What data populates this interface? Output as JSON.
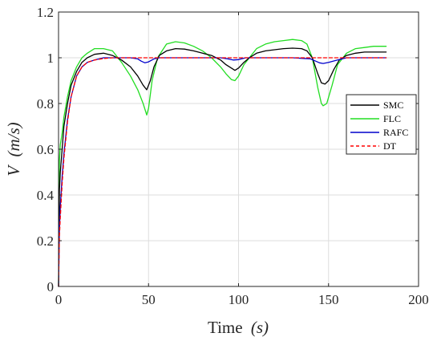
{
  "chart_data": {
    "type": "line",
    "xlabel_main": "Time",
    "xlabel_unit": "(s)",
    "ylabel_main": "V",
    "ylabel_unit": "(m/s)",
    "xlim": [
      0,
      200
    ],
    "ylim": [
      0,
      1.2
    ],
    "xticks": [
      0,
      50,
      100,
      150,
      200
    ],
    "yticks": [
      0,
      0.2,
      0.4,
      0.6,
      0.8,
      1,
      1.2
    ],
    "xtick_labels": [
      "0",
      "50",
      "100",
      "150",
      "200"
    ],
    "ytick_labels": [
      "0",
      "0.2",
      "0.4",
      "0.6",
      "0.8",
      "1",
      "1.2"
    ],
    "grid": true,
    "legend_position": "right",
    "series": [
      {
        "name": "SMC",
        "color": "#000000",
        "dash": "solid",
        "x": [
          0,
          0.5,
          1,
          2,
          3,
          5,
          7,
          10,
          13,
          16,
          20,
          25,
          30,
          35,
          40,
          44,
          47,
          49,
          51,
          53,
          56,
          60,
          65,
          70,
          75,
          80,
          85,
          90,
          93,
          96,
          98,
          100,
          103,
          106,
          110,
          115,
          120,
          125,
          130,
          135,
          138,
          141,
          144,
          146,
          148,
          150,
          153,
          156,
          160,
          165,
          170,
          175,
          182
        ],
        "y": [
          0,
          0.42,
          0.5,
          0.6,
          0.7,
          0.8,
          0.88,
          0.94,
          0.98,
          1.0,
          1.015,
          1.02,
          1.01,
          0.99,
          0.96,
          0.92,
          0.88,
          0.86,
          0.9,
          0.96,
          1.01,
          1.03,
          1.04,
          1.038,
          1.03,
          1.02,
          1.01,
          0.99,
          0.97,
          0.955,
          0.945,
          0.955,
          0.98,
          1.0,
          1.02,
          1.03,
          1.035,
          1.04,
          1.042,
          1.04,
          1.03,
          1.0,
          0.93,
          0.89,
          0.885,
          0.9,
          0.95,
          0.99,
          1.01,
          1.02,
          1.025,
          1.025,
          1.025
        ]
      },
      {
        "name": "FLC",
        "color": "#22dd22",
        "dash": "solid",
        "x": [
          0,
          0.5,
          1,
          2,
          3,
          5,
          7,
          10,
          13,
          16,
          20,
          25,
          30,
          35,
          40,
          44,
          47,
          49,
          50,
          52,
          55,
          60,
          65,
          70,
          75,
          80,
          85,
          90,
          93,
          96,
          98,
          100,
          103,
          106,
          110,
          115,
          120,
          125,
          130,
          135,
          138,
          141,
          144,
          146,
          147,
          149,
          152,
          155,
          160,
          165,
          170,
          175,
          182
        ],
        "y": [
          0,
          0.55,
          0.62,
          0.67,
          0.74,
          0.83,
          0.9,
          0.96,
          1.0,
          1.02,
          1.04,
          1.04,
          1.03,
          0.98,
          0.92,
          0.86,
          0.8,
          0.75,
          0.78,
          0.9,
          1.0,
          1.06,
          1.07,
          1.065,
          1.05,
          1.03,
          1.0,
          0.96,
          0.93,
          0.905,
          0.9,
          0.92,
          0.97,
          1.0,
          1.04,
          1.06,
          1.07,
          1.075,
          1.08,
          1.075,
          1.06,
          1.0,
          0.87,
          0.8,
          0.79,
          0.8,
          0.88,
          0.97,
          1.02,
          1.04,
          1.045,
          1.05,
          1.05
        ]
      },
      {
        "name": "RAFC",
        "color": "#0000cc",
        "dash": "solid",
        "x": [
          0,
          0.5,
          1,
          2,
          3,
          5,
          7,
          10,
          13,
          16,
          20,
          25,
          30,
          35,
          40,
          44,
          46,
          48,
          50,
          53,
          56,
          60,
          70,
          80,
          90,
          94,
          97,
          100,
          104,
          110,
          120,
          130,
          140,
          143,
          145,
          147,
          150,
          155,
          160,
          170,
          182
        ],
        "y": [
          0,
          0.25,
          0.35,
          0.48,
          0.58,
          0.73,
          0.83,
          0.92,
          0.96,
          0.98,
          0.99,
          1.0,
          1.0,
          1.0,
          1.0,
          0.995,
          0.985,
          0.978,
          0.982,
          0.995,
          1.0,
          1.0,
          1.0,
          1.0,
          1.0,
          0.995,
          0.99,
          0.992,
          1.0,
          1.0,
          1.0,
          1.0,
          0.995,
          0.985,
          0.978,
          0.975,
          0.98,
          0.99,
          1.0,
          1.0,
          1.0
        ]
      },
      {
        "name": "DT",
        "color": "#ff0000",
        "dash": "dashed",
        "x": [
          0,
          0.5,
          1,
          2,
          3,
          5,
          7,
          10,
          13,
          16,
          20,
          25,
          30,
          40,
          60,
          100,
          140,
          160,
          182
        ],
        "y": [
          0,
          0.22,
          0.3,
          0.45,
          0.56,
          0.72,
          0.83,
          0.92,
          0.96,
          0.98,
          0.99,
          0.997,
          1.0,
          1.0,
          1.0,
          1.0,
          1.0,
          1.0,
          1.0
        ]
      }
    ]
  }
}
